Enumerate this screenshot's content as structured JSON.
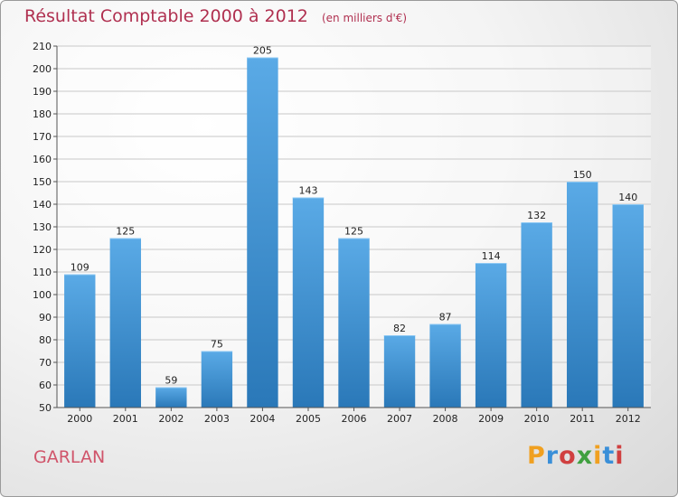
{
  "chart_data": {
    "type": "bar",
    "title": "Résultat Comptable 2000 à 2012",
    "subtitle": "(en milliers d'€)",
    "categories": [
      "2000",
      "2001",
      "2002",
      "2003",
      "2004",
      "2005",
      "2006",
      "2007",
      "2008",
      "2009",
      "2010",
      "2011",
      "2012"
    ],
    "values": [
      109,
      125,
      59,
      75,
      205,
      143,
      125,
      82,
      87,
      114,
      132,
      150,
      140
    ],
    "ylim": [
      50,
      210
    ],
    "yticks": [
      "50",
      "60",
      "70",
      "80",
      "90",
      "100",
      "110",
      "120",
      "130",
      "140",
      "150",
      "160",
      "170",
      "180",
      "190",
      "200",
      "210"
    ],
    "grid": true,
    "bar_color_top": "#5aaae6",
    "bar_color_bottom": "#2a78b8"
  },
  "location_label": "GARLAN",
  "brand": {
    "letters": [
      "P",
      "r",
      "o",
      "x",
      "i",
      "t",
      "i"
    ],
    "colors": [
      "#f0a020",
      "#3a8fd8",
      "#d04040",
      "#40a040",
      "#f0a020",
      "#3a8fd8",
      "#d04040"
    ]
  }
}
